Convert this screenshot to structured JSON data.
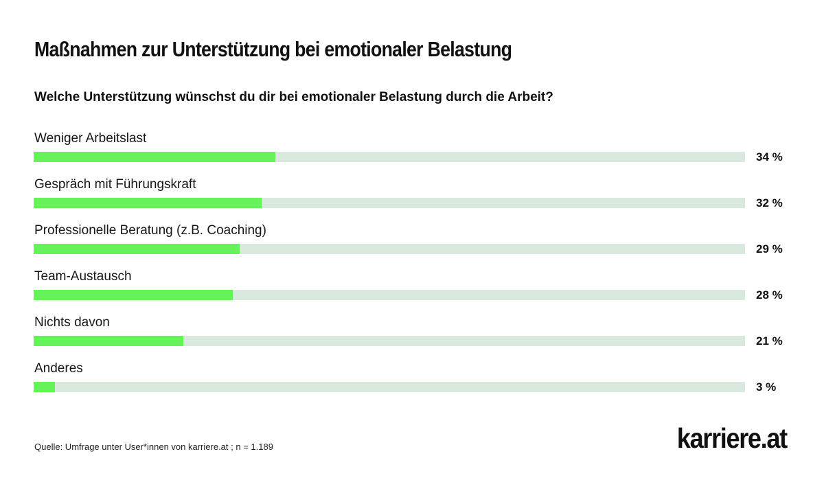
{
  "chart_data": {
    "type": "bar",
    "orientation": "horizontal",
    "title": "Maßnahmen zur Unterstützung bei emotionaler Belastung",
    "subtitle": "Welche Unterstützung wünschst du dir bei emotionaler Belastung durch die Arbeit?",
    "categories": [
      "Weniger Arbeitslast",
      "Gespräch mit Führungskraft",
      "Professionelle Beratung (z.B. Coaching)",
      "Team-Austausch",
      "Nichts davon",
      "Anderes"
    ],
    "values": [
      34,
      32,
      29,
      28,
      21,
      3
    ],
    "value_labels": [
      "34 %",
      "32 %",
      "29 %",
      "28 %",
      "21 %",
      "3 %"
    ],
    "xlim": [
      0,
      100
    ],
    "grid": false,
    "colors": {
      "fill": "#66f35a",
      "track": "#d9e9de"
    }
  },
  "footer": {
    "source": "Quelle: Umfrage unter User*innen von karriere.at ; n = 1.189",
    "brand": "karriere.at"
  }
}
